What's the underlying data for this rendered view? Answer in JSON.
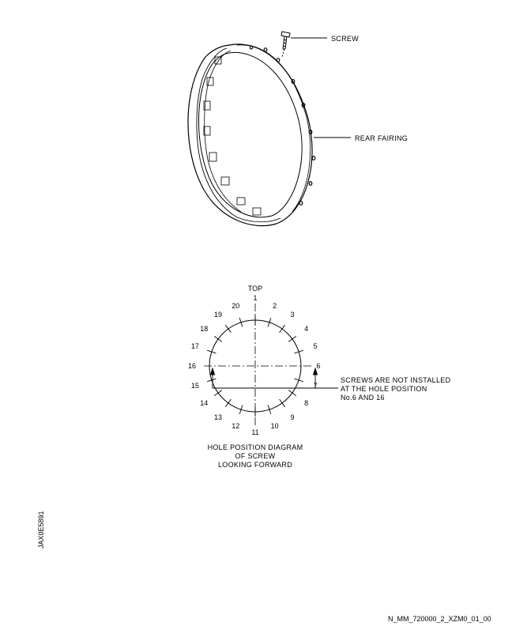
{
  "labels": {
    "screw": "SCREW",
    "rear_fairing": "REAR FAIRING"
  },
  "hole_diagram": {
    "top_label": "TOP",
    "holes": [
      "1",
      "2",
      "3",
      "4",
      "5",
      "6",
      "7",
      "8",
      "9",
      "10",
      "11",
      "12",
      "13",
      "14",
      "15",
      "16",
      "17",
      "18",
      "19",
      "20"
    ],
    "note_lines": [
      "SCREWS ARE NOT INSTALLED",
      "AT THE HOLE POSITION",
      "No.6 AND 16"
    ],
    "caption_lines": [
      "HOLE POSITION DIAGRAM",
      "OF SCREW",
      "LOOKING FORWARD"
    ]
  },
  "side_code": "JAX0E5891",
  "document_id": "N_MM_720000_2_XZM0_01_00"
}
